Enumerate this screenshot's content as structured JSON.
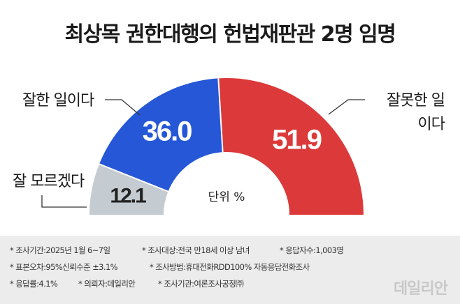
{
  "title": "최상목 권한대행의 헌법재판관 2명 임명",
  "chart_data": {
    "type": "pie",
    "title": "최상목 권한대행의 헌법재판관 2명 임명",
    "unit_label": "단위 %",
    "slices": [
      {
        "label": "잘 모르겠다",
        "value": 12.1,
        "value_label": "12.1",
        "color": "#c4ccd2"
      },
      {
        "label": "잘한 일이다",
        "value": 36.0,
        "value_label": "36.0",
        "color": "#2557d6"
      },
      {
        "label": "잘못한 일이다",
        "label_lines": [
          "잘못한 일",
          "이다"
        ],
        "value": 51.9,
        "value_label": "51.9",
        "color": "#dc3a3a"
      }
    ]
  },
  "notes": [
    "* 조사기간:2025년 1월 6~7일",
    "* 조사대상:전국 만18세 이상 남녀",
    "* 응답자수:1,003명",
    "* 표본오차:95%신뢰수준 ±3.1%",
    "* 조사방법:휴대전화RDD100% 자동응답전화조사",
    "* 응답률:4.1%",
    "* 의뢰자:데일리안",
    "* 조사기관:여론조사공정㈜"
  ],
  "watermark": "데일리안"
}
